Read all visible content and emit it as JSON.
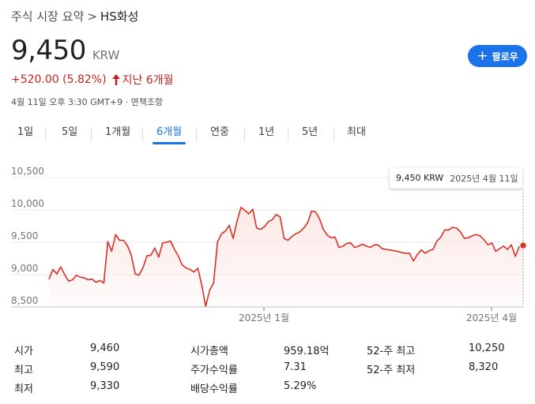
{
  "breadcrumb": {
    "parent": "주식 시장 요약",
    "separator": ">",
    "current": "HS화성"
  },
  "quote": {
    "price": "9,450",
    "currency": "KRW",
    "change": "+520.00 (5.82%)",
    "period_text": "지난 6개월",
    "timestamp": "4월 11일 오후 3:30 GMT+9 · 면책조항"
  },
  "follow_button": {
    "label": "팔로우"
  },
  "range_tabs": [
    {
      "label": "1일"
    },
    {
      "label": "5일"
    },
    {
      "label": "1개월"
    },
    {
      "label": "6개월"
    },
    {
      "label": "연중"
    },
    {
      "label": "1년"
    },
    {
      "label": "5년"
    },
    {
      "label": "최대"
    }
  ],
  "active_tab": "6개월",
  "tooltip": {
    "price": "9,450 KRW",
    "date": "2025년 4월 11일"
  },
  "colors": {
    "accent": "#1a73e8",
    "negative": "#c5221f",
    "line": "#d93025"
  },
  "chart_data": {
    "type": "line",
    "y_ticks": [
      "10,500",
      "10,000",
      "9,500",
      "9,000",
      "8,500"
    ],
    "y_tick_values": [
      10500,
      10000,
      9500,
      9000,
      8500
    ],
    "ylim": [
      8500,
      10500
    ],
    "x_ticks": [
      "2025년 1월",
      "2025년 4월"
    ],
    "grid": true,
    "series": [
      {
        "values": [
          8930,
          9080,
          9010,
          9120,
          9000,
          8900,
          8920,
          8990,
          8960,
          8950,
          8920,
          8930,
          8880,
          8910,
          8870,
          9510,
          9360,
          9620,
          9530,
          9530,
          9450,
          9300,
          9010,
          8990,
          9110,
          9290,
          9300,
          9410,
          9270,
          9490,
          9500,
          9520,
          9390,
          9290,
          9150,
          9100,
          9080,
          9040,
          9100,
          8830,
          8510,
          8760,
          8870,
          9500,
          9630,
          9670,
          9760,
          9560,
          9830,
          10040,
          9990,
          9940,
          10010,
          9720,
          9700,
          9740,
          9820,
          9850,
          9930,
          9890,
          9560,
          9530,
          9590,
          9630,
          9660,
          9720,
          9800,
          9980,
          9970,
          9870,
          9700,
          9610,
          9570,
          9580,
          9420,
          9440,
          9480,
          9490,
          9420,
          9440,
          9470,
          9440,
          9420,
          9460,
          9460,
          9400,
          9390,
          9380,
          9370,
          9360,
          9340,
          9330,
          9330,
          9210,
          9310,
          9380,
          9330,
          9370,
          9390,
          9520,
          9580,
          9690,
          9690,
          9730,
          9720,
          9660,
          9560,
          9570,
          9600,
          9620,
          9600,
          9540,
          9460,
          9490,
          9360,
          9400,
          9440,
          9390,
          9460,
          9280,
          9430,
          9450
        ]
      }
    ]
  },
  "stats": [
    {
      "label": "시가",
      "value": "9,460"
    },
    {
      "label": "최고",
      "value": "9,590"
    },
    {
      "label": "최저",
      "value": "9,330"
    },
    {
      "label": "시가총액",
      "value": "959.18억"
    },
    {
      "label": "주가수익률",
      "value": "7.31"
    },
    {
      "label": "배당수익률",
      "value": "5.29%"
    },
    {
      "label": "52-주 최고",
      "value": "10,250"
    },
    {
      "label": "52-주 최저",
      "value": "8,320"
    }
  ]
}
